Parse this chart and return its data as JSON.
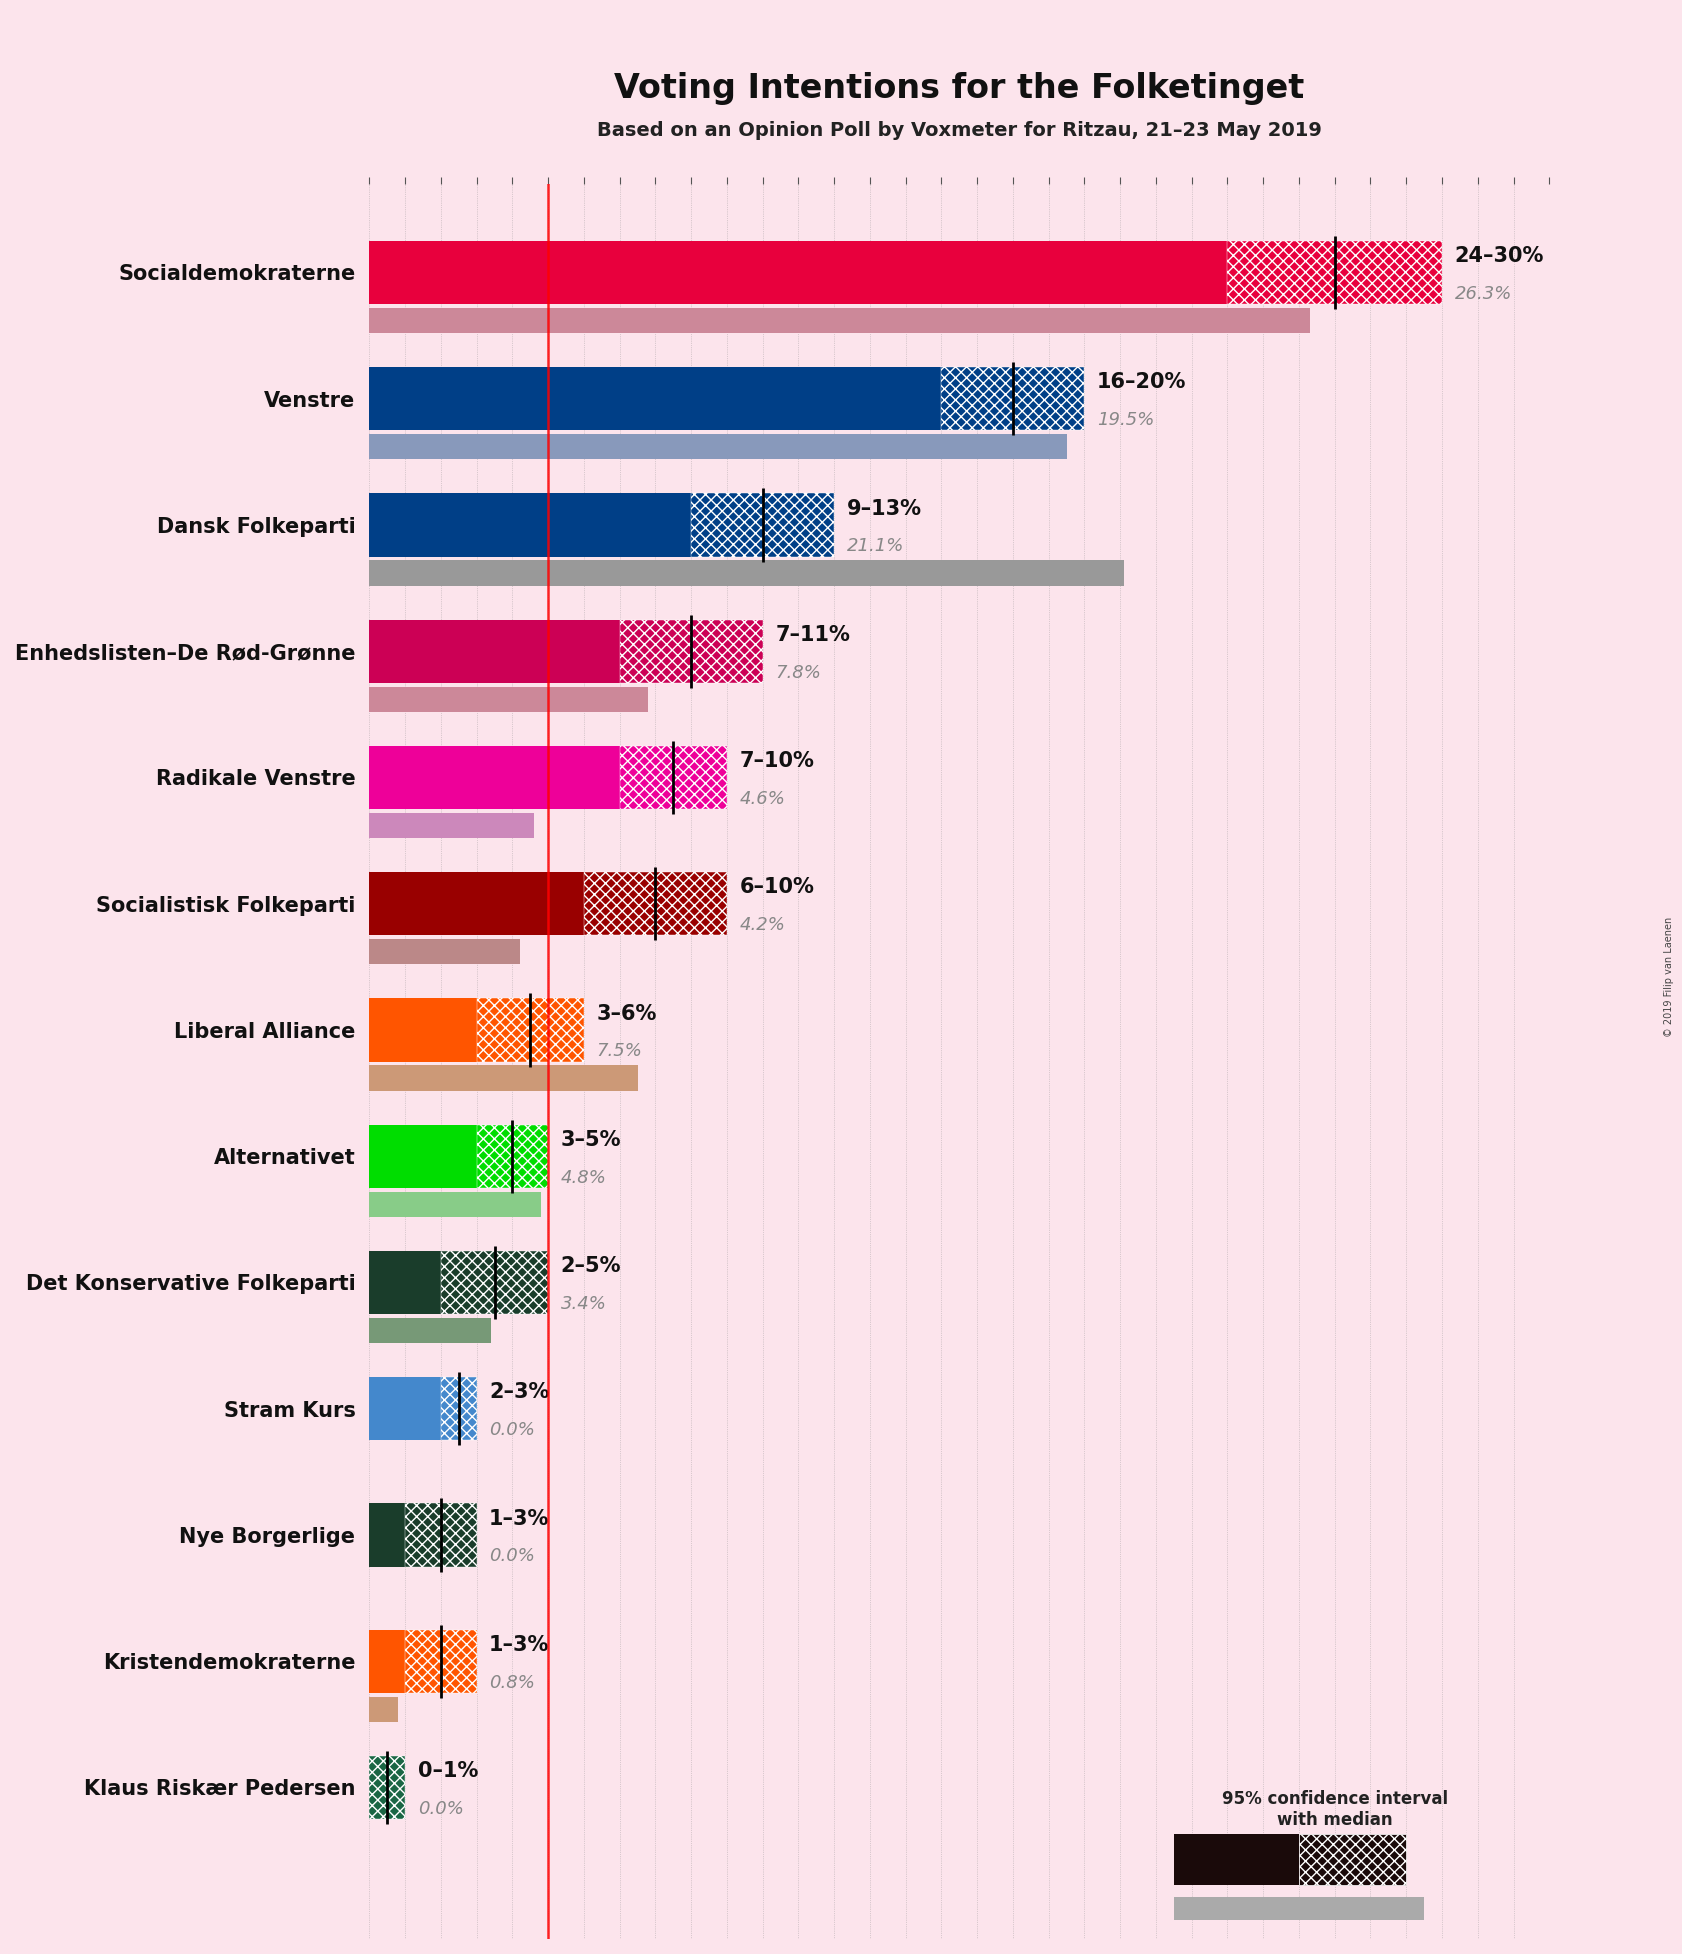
{
  "title": "Voting Intentions for the Folketinget",
  "subtitle": "Based on an Opinion Poll by Voxmeter for Ritzau, 21–23 May 2019",
  "copyright": "© 2019 Filip van Laenen",
  "background_color": "#fce4ec",
  "parties": [
    "Socialdemokraterne",
    "Venstre",
    "Dansk Folkeparti",
    "Enhedslisten–De Rød-Grønne",
    "Radikale Venstre",
    "Socialistisk Folkeparti",
    "Liberal Alliance",
    "Alternativet",
    "Det Konservative Folkeparti",
    "Stram Kurs",
    "Nye Borgerlige",
    "Kristendemokraterne",
    "Klaus Riskær Pedersen"
  ],
  "ci_low": [
    24,
    16,
    9,
    7,
    7,
    6,
    3,
    3,
    2,
    2,
    1,
    1,
    0
  ],
  "ci_high": [
    30,
    20,
    13,
    11,
    10,
    10,
    6,
    5,
    5,
    3,
    3,
    3,
    1
  ],
  "median": [
    27,
    18,
    11,
    9,
    8.5,
    8,
    4.5,
    4,
    3.5,
    2.5,
    2,
    2,
    0.5
  ],
  "last_result": [
    26.3,
    19.5,
    21.1,
    7.8,
    4.6,
    4.2,
    7.5,
    4.8,
    3.4,
    0.0,
    0.0,
    0.8,
    0.0
  ],
  "ci_labels": [
    "24–30%",
    "16–20%",
    "9–13%",
    "7–11%",
    "7–10%",
    "6–10%",
    "3–6%",
    "3–5%",
    "2–5%",
    "2–3%",
    "1–3%",
    "1–3%",
    "0–1%"
  ],
  "last_labels": [
    "26.3%",
    "19.5%",
    "21.1%",
    "7.8%",
    "4.6%",
    "4.2%",
    "7.5%",
    "4.8%",
    "3.4%",
    "0.0%",
    "0.0%",
    "0.8%",
    "0.0%"
  ],
  "party_colors": [
    "#e8003d",
    "#003f87",
    "#003f87",
    "#cc0055",
    "#ee0099",
    "#990000",
    "#ff5500",
    "#00dd00",
    "#1a3d2b",
    "#4488cc",
    "#1a3d2b",
    "#ff5500",
    "#1a6644"
  ],
  "last_colors": [
    "#cc8899",
    "#8899bb",
    "#999999",
    "#cc8899",
    "#cc88bb",
    "#bb8888",
    "#cc9977",
    "#88cc88",
    "#779977",
    "#99aabb",
    "#779977",
    "#cc9977",
    "#779977"
  ],
  "xlim": [
    0,
    33
  ],
  "axvline_x": 5
}
